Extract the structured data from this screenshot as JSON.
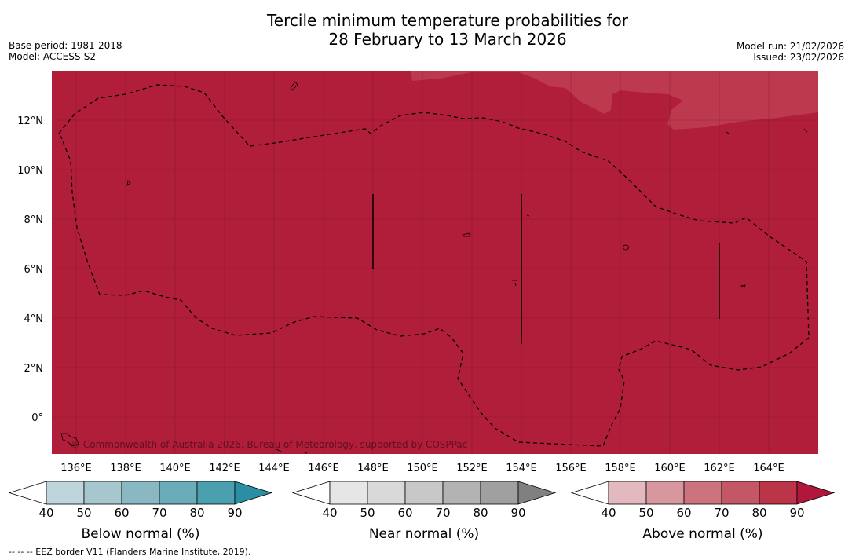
{
  "title": {
    "line1": "Tercile minimum temperature probabilities for",
    "line2": "28 February to 13 March 2026"
  },
  "meta": {
    "base_period": "Base period: 1981-2018",
    "model": "Model: ACCESS-S2",
    "model_run": "Model run: 21/02/2026",
    "issued": "Issued: 23/02/2026"
  },
  "map": {
    "fill_color": "#b01e3a",
    "light_fill_color": "#bd3a4e",
    "lat_labels": [
      "12°N",
      "10°N",
      "8°N",
      "6°N",
      "4°N",
      "2°N",
      "0°"
    ],
    "lon_labels": [
      "136°E",
      "138°E",
      "140°E",
      "142°E",
      "144°E",
      "146°E",
      "148°E",
      "150°E",
      "152°E",
      "154°E",
      "156°E",
      "158°E",
      "160°E",
      "162°E",
      "164°E"
    ],
    "copyright": "© Commonwealth of Australia 2026, Bureau of Meteorology, supported by COSPPac"
  },
  "legends": [
    {
      "label": "Below normal (%)",
      "ticks": [
        "40",
        "50",
        "60",
        "70",
        "80",
        "90"
      ],
      "colors": [
        "#ffffff",
        "#bfd5dc",
        "#a7c7cf",
        "#89b7c2",
        "#6aacb9",
        "#4ba0b0",
        "#2a8fa3"
      ]
    },
    {
      "label": "Near normal (%)",
      "ticks": [
        "40",
        "50",
        "60",
        "70",
        "80",
        "90"
      ],
      "colors": [
        "#ffffff",
        "#e6e6e6",
        "#d9d9d9",
        "#c8c8c8",
        "#b3b3b3",
        "#a0a0a0",
        "#808080"
      ]
    },
    {
      "label": "Above normal (%)",
      "ticks": [
        "40",
        "50",
        "60",
        "70",
        "80",
        "90"
      ],
      "colors": [
        "#ffffff",
        "#e3b8be",
        "#d8979f",
        "#cd737e",
        "#c45766",
        "#bb3447",
        "#b0173b"
      ]
    }
  ],
  "footnote": "--  --  -- EEZ border V11 (Flanders Marine Institute, 2019)."
}
